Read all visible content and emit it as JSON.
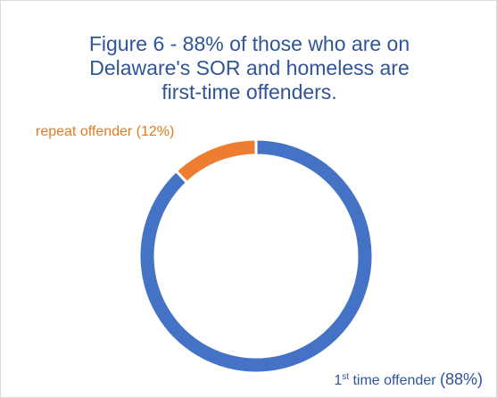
{
  "chart_data": {
    "type": "pie",
    "variant": "donut",
    "title_lines": [
      "Figure 6 - 88% of those who are on",
      "Delaware's SOR and homeless are",
      "first-time offenders."
    ],
    "slices": [
      {
        "name": "1st time offender",
        "label_parts": {
          "base": "1",
          "sup": "st",
          "rest": " time offender ",
          "pct": "(88%)"
        },
        "value": 88,
        "color": "#4472c4"
      },
      {
        "name": "repeat offender",
        "label": "repeat offender (12%)",
        "value": 12,
        "color": "#ed7d31"
      }
    ],
    "start_angle_deg": 0,
    "direction": "clockwise",
    "legend": "none"
  }
}
